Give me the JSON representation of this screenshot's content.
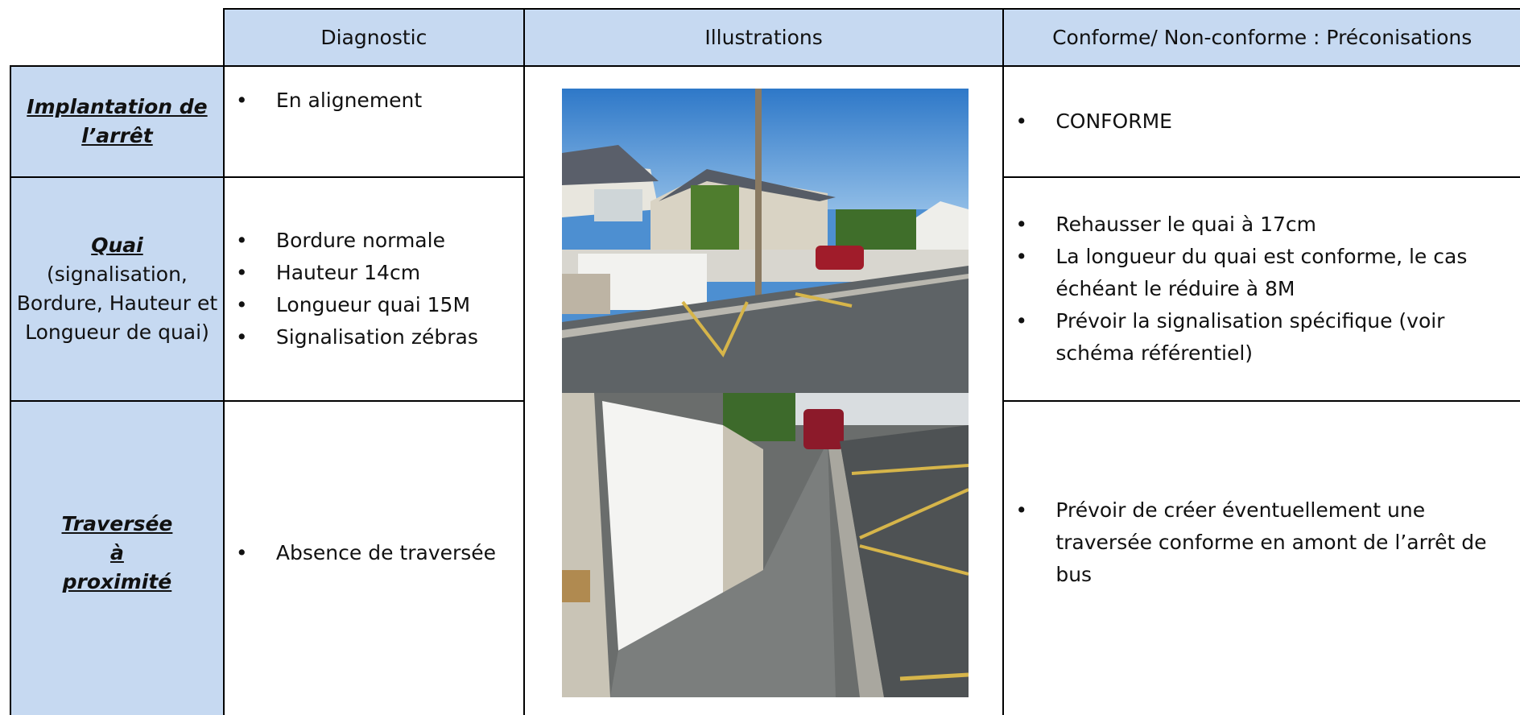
{
  "header": {
    "diagnostic": "Diagnostic",
    "illustrations": "Illustrations",
    "conformity": "Conforme/ Non-conforme : Préconisations"
  },
  "rows": [
    {
      "label": "Implantation de l’arrêt",
      "diagnostic": [
        "En alignement"
      ],
      "recommendations": [
        "CONFORME"
      ]
    },
    {
      "label": "Quai",
      "label_note": "(signalisation, Bordure, Hauteur et Longueur de quai)",
      "diagnostic": [
        "Bordure normale",
        "Hauteur 14cm",
        "Longueur quai 15M",
        "Signalisation zébras"
      ],
      "recommendations": [
        "Rehausser le quai à 17cm",
        "La longueur du quai est conforme, le cas échéant le réduire à 8M",
        "Prévoir la signalisation spécifique (voir schéma référentiel)"
      ]
    },
    {
      "label": "Traversée à proximité",
      "diagnostic": [
        "Absence de traversée"
      ],
      "recommendations": [
        "Prévoir de créer éventuellement une traversée conforme en amont de l’arrêt de bus"
      ]
    }
  ]
}
